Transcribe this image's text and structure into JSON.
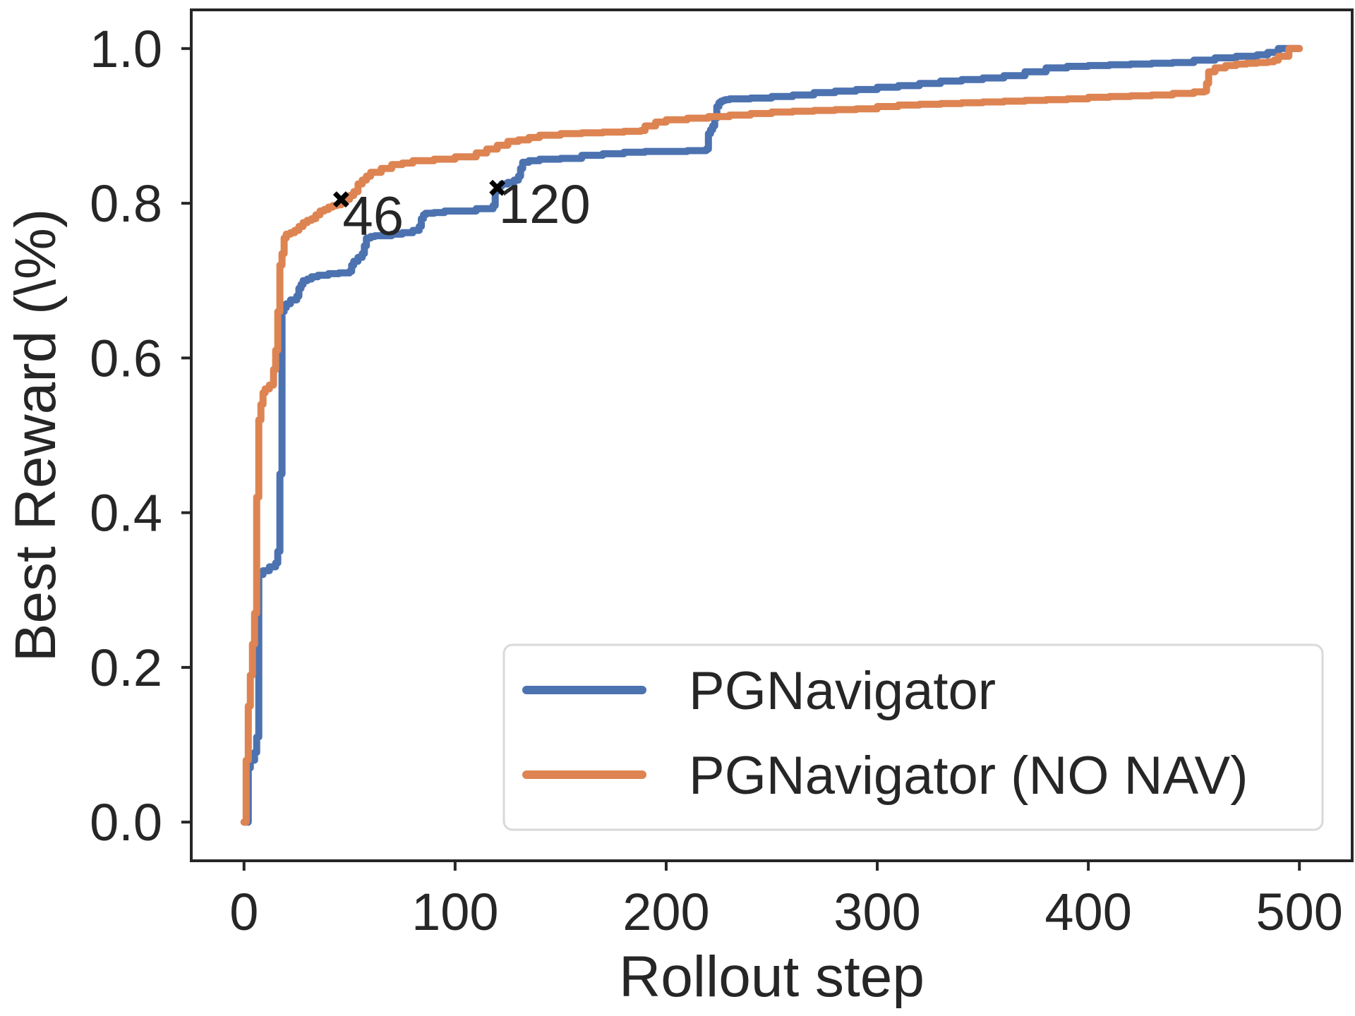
{
  "chart_data": {
    "type": "line",
    "title": "",
    "xlabel": "Rollout step",
    "ylabel": "Best Reward (\\%)",
    "xlim": [
      -25,
      525
    ],
    "ylim": [
      -0.05,
      1.05
    ],
    "xticks": [
      0,
      100,
      200,
      300,
      400,
      500
    ],
    "yticks": [
      0.0,
      0.2,
      0.4,
      0.6,
      0.8,
      1.0
    ],
    "xtick_labels": [
      "0",
      "100",
      "200",
      "300",
      "400",
      "500"
    ],
    "ytick_labels": [
      "0.0",
      "0.2",
      "0.4",
      "0.6",
      "0.8",
      "1.0"
    ],
    "grid": false,
    "legend_position": "lower-right",
    "series": [
      {
        "name": "PGNavigator",
        "color": "#4c72b0",
        "x": [
          0,
          2,
          3,
          5,
          6,
          7,
          8,
          9,
          12,
          15,
          16,
          17,
          18,
          19,
          20,
          22,
          25,
          26,
          27,
          28,
          29,
          30,
          32,
          35,
          40,
          45,
          50,
          51,
          52,
          54,
          55,
          56,
          57,
          58,
          60,
          62,
          65,
          70,
          75,
          80,
          83,
          84,
          85,
          86,
          90,
          95,
          100,
          110,
          118,
          119,
          120,
          121,
          122,
          125,
          128,
          130,
          131,
          132,
          135,
          140,
          150,
          160,
          170,
          180,
          190,
          200,
          210,
          219,
          220,
          221,
          222,
          223,
          224,
          225,
          226,
          227,
          228,
          230,
          240,
          250,
          260,
          270,
          280,
          290,
          300,
          310,
          320,
          330,
          340,
          350,
          360,
          370,
          380,
          390,
          400,
          410,
          420,
          430,
          440,
          450,
          460,
          470,
          480,
          485,
          490,
          495,
          500
        ],
        "y": [
          0.0,
          0.07,
          0.08,
          0.09,
          0.11,
          0.32,
          0.32,
          0.325,
          0.33,
          0.335,
          0.35,
          0.45,
          0.66,
          0.665,
          0.67,
          0.675,
          0.68,
          0.69,
          0.695,
          0.7,
          0.7,
          0.702,
          0.705,
          0.707,
          0.709,
          0.71,
          0.712,
          0.72,
          0.725,
          0.73,
          0.73,
          0.735,
          0.745,
          0.755,
          0.757,
          0.758,
          0.758,
          0.76,
          0.762,
          0.765,
          0.77,
          0.78,
          0.785,
          0.787,
          0.788,
          0.79,
          0.79,
          0.793,
          0.797,
          0.815,
          0.82,
          0.822,
          0.825,
          0.827,
          0.83,
          0.835,
          0.845,
          0.853,
          0.855,
          0.857,
          0.858,
          0.862,
          0.864,
          0.866,
          0.867,
          0.867,
          0.868,
          0.87,
          0.89,
          0.895,
          0.9,
          0.91,
          0.925,
          0.93,
          0.932,
          0.933,
          0.934,
          0.935,
          0.936,
          0.938,
          0.94,
          0.943,
          0.945,
          0.947,
          0.95,
          0.952,
          0.955,
          0.958,
          0.96,
          0.962,
          0.965,
          0.97,
          0.975,
          0.977,
          0.978,
          0.979,
          0.98,
          0.981,
          0.982,
          0.985,
          0.988,
          0.99,
          0.992,
          0.995,
          1.0,
          1.0,
          1.0
        ]
      },
      {
        "name": "PGNavigator (NO NAV)",
        "color": "#dd8452",
        "x": [
          0,
          1,
          2,
          3,
          4,
          5,
          6,
          7,
          8,
          9,
          10,
          12,
          14,
          15,
          16,
          17,
          18,
          19,
          20,
          22,
          24,
          26,
          28,
          30,
          32,
          34,
          36,
          38,
          40,
          42,
          44,
          46,
          48,
          50,
          52,
          54,
          56,
          58,
          60,
          65,
          70,
          75,
          80,
          90,
          100,
          110,
          115,
          120,
          125,
          130,
          135,
          140,
          150,
          160,
          170,
          180,
          188,
          190,
          195,
          200,
          210,
          220,
          230,
          240,
          250,
          260,
          270,
          280,
          290,
          300,
          310,
          320,
          330,
          340,
          350,
          360,
          370,
          380,
          390,
          400,
          410,
          420,
          430,
          440,
          450,
          455,
          456,
          457,
          460,
          465,
          470,
          475,
          480,
          485,
          488,
          490,
          495,
          500
        ],
        "y": [
          0.0,
          0.08,
          0.15,
          0.19,
          0.23,
          0.27,
          0.42,
          0.52,
          0.54,
          0.555,
          0.56,
          0.565,
          0.585,
          0.61,
          0.66,
          0.72,
          0.735,
          0.755,
          0.76,
          0.762,
          0.765,
          0.77,
          0.775,
          0.778,
          0.78,
          0.785,
          0.79,
          0.792,
          0.795,
          0.797,
          0.798,
          0.8,
          0.805,
          0.81,
          0.815,
          0.825,
          0.83,
          0.835,
          0.84,
          0.845,
          0.85,
          0.852,
          0.855,
          0.857,
          0.86,
          0.865,
          0.87,
          0.875,
          0.88,
          0.882,
          0.885,
          0.888,
          0.89,
          0.891,
          0.892,
          0.893,
          0.894,
          0.9,
          0.905,
          0.908,
          0.91,
          0.912,
          0.914,
          0.916,
          0.918,
          0.919,
          0.92,
          0.921,
          0.922,
          0.925,
          0.927,
          0.928,
          0.929,
          0.93,
          0.931,
          0.932,
          0.933,
          0.934,
          0.935,
          0.937,
          0.938,
          0.939,
          0.94,
          0.942,
          0.944,
          0.945,
          0.955,
          0.97,
          0.975,
          0.978,
          0.98,
          0.981,
          0.982,
          0.983,
          0.985,
          0.99,
          1.0,
          1.0
        ]
      }
    ],
    "annotations": [
      {
        "text": "46",
        "x": 46,
        "y": 0.805,
        "marker": "x"
      },
      {
        "text": "120",
        "x": 120,
        "y": 0.82,
        "marker": "x"
      }
    ]
  }
}
